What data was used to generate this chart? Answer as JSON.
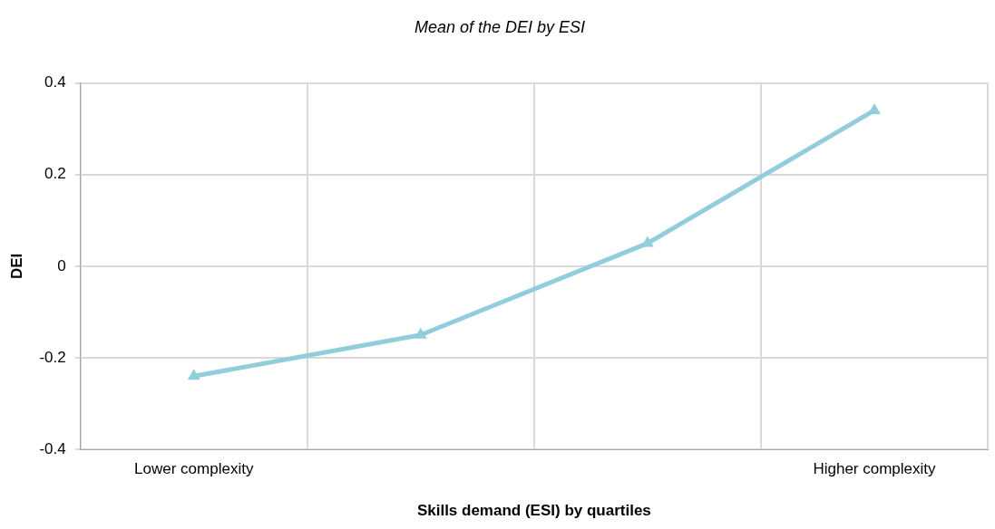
{
  "chart_data": {
    "type": "line",
    "title": "Mean of the DEI by ESI",
    "xlabel": "Skills demand (ESI) by quartiles",
    "ylabel": "DEI",
    "categories": [
      "Lower complexity",
      null,
      null,
      "Higher complexity"
    ],
    "series": [
      {
        "color": "#92cddc",
        "values": [
          -0.24,
          -0.15,
          0.05,
          0.34
        ]
      }
    ],
    "ylim": [
      -0.4,
      0.4
    ],
    "yticks": [
      -0.4,
      -0.2,
      0,
      0.2,
      0.4
    ],
    "grid": true,
    "legend": false,
    "marker": "triangle",
    "line_style": "solid"
  }
}
